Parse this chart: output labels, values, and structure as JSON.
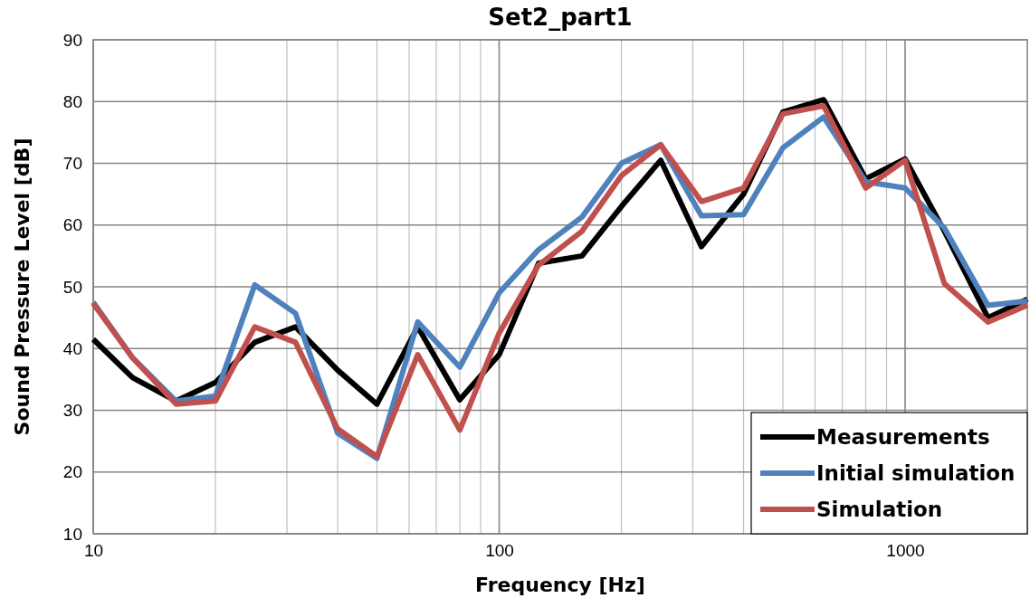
{
  "chart_data": {
    "type": "line",
    "title": "Set2_part1",
    "xlabel": "Frequency [Hz]",
    "ylabel": "Sound Pressure Level [dB]",
    "x": [
      10,
      12.5,
      16,
      20,
      25,
      31.5,
      40,
      50,
      63,
      80,
      100,
      125,
      160,
      200,
      250,
      315,
      400,
      500,
      630,
      800,
      1000,
      1250,
      1600,
      2000
    ],
    "series": [
      {
        "name": "Measurements",
        "color": "#000000",
        "values": [
          41.5,
          35.3,
          31.5,
          34.5,
          41,
          43.5,
          36.5,
          31,
          43.5,
          31.7,
          39,
          53.8,
          55,
          63,
          70.5,
          56.5,
          65,
          78.3,
          80.3,
          67.5,
          70.7,
          59,
          45,
          48
        ]
      },
      {
        "name": "Initial simulation",
        "color": "#4f81bd",
        "values": [
          47.5,
          38.5,
          31.5,
          32.3,
          50.3,
          45.7,
          26.3,
          22.2,
          44.3,
          37,
          49,
          56,
          61.3,
          70,
          73,
          61.5,
          61.7,
          72.5,
          77.5,
          67,
          66,
          59.5,
          47,
          47.7
        ]
      },
      {
        "name": "Simulation",
        "color": "#c0504d",
        "values": [
          47.3,
          38.5,
          31,
          31.5,
          43.5,
          41,
          27,
          22.5,
          39,
          26.8,
          42.5,
          53.5,
          59,
          68,
          73,
          63.8,
          66,
          78,
          79.3,
          66,
          70.5,
          50.5,
          44.3,
          47
        ]
      }
    ],
    "log": "x",
    "xlim": [
      10,
      2000
    ],
    "xticks": [
      10,
      {
        "value": 20,
        "label": null
      },
      {
        "value": 30,
        "label": null
      },
      {
        "value": 40,
        "label": null
      },
      {
        "value": 50,
        "label": null
      },
      {
        "value": 60,
        "label": null
      },
      {
        "value": 70,
        "label": null
      },
      {
        "value": 80,
        "label": null
      },
      {
        "value": 90,
        "label": null
      },
      100,
      {
        "value": 200,
        "label": null
      },
      {
        "value": 300,
        "label": null
      },
      {
        "value": 400,
        "label": null
      },
      {
        "value": 500,
        "label": null
      },
      {
        "value": 600,
        "label": null
      },
      {
        "value": 700,
        "label": null
      },
      {
        "value": 800,
        "label": null
      },
      {
        "value": 900,
        "label": null
      },
      1000
    ],
    "ylim": [
      10,
      90
    ],
    "yticks": [
      10,
      20,
      30,
      40,
      50,
      60,
      70,
      80,
      90
    ],
    "grid": true,
    "legend": "bottom right",
    "marker": "none",
    "line_style": "solid"
  }
}
